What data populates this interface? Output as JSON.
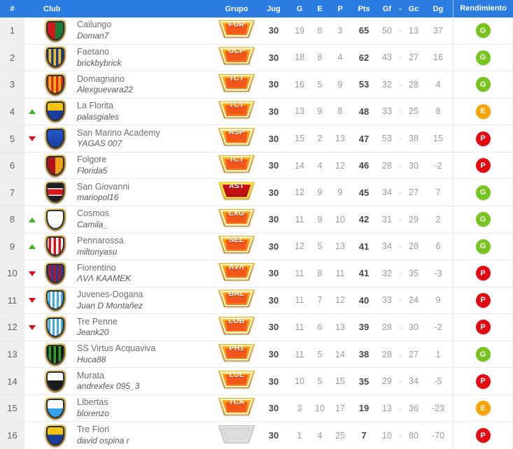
{
  "colors": {
    "header_bg": "#2b7de1",
    "header_text": "#ffffff",
    "pos_col_bg": "#efefef",
    "row_border": "#e9e9e9",
    "text_bold": "#474747",
    "text_muted": "#9c9c9c",
    "up_arrow": "#3fb423",
    "down_arrow": "#e30613",
    "rend_green": "#76c41d",
    "rend_amber": "#f8a300",
    "rend_red": "#e30b13",
    "badge_orange": "#f36d16",
    "badge_red": "#c31111",
    "badge_gray": "#d6d6d6"
  },
  "table": {
    "headers": {
      "pos": "#",
      "club": "Club",
      "grupo": "Grupo",
      "jug": "Jug",
      "g": "G",
      "e": "E",
      "p": "P",
      "pts": "Pts",
      "gf": "Gf",
      "dash": "-",
      "gc": "Gc",
      "dg": "Dg",
      "rendimiento": "Rendimiento"
    },
    "dash": "-",
    "rows": [
      {
        "pos": "1",
        "trend": "none",
        "club": "Cailungo",
        "user": "Doman7",
        "crest": "cailungo",
        "grupo": "FUR",
        "grupo_style": "orange",
        "jug": "30",
        "g": "19",
        "e": "8",
        "p": "3",
        "pts": "65",
        "gf": "50",
        "gc": "13",
        "dg": "37",
        "rend": "G"
      },
      {
        "pos": "2",
        "trend": "none",
        "club": "Faetano",
        "user": "brickbybrick",
        "crest": "faetano",
        "grupo": "UCP",
        "grupo_style": "orange",
        "jug": "30",
        "g": "18",
        "e": "8",
        "p": "4",
        "pts": "62",
        "gf": "43",
        "gc": "27",
        "dg": "16",
        "rend": "G"
      },
      {
        "pos": "3",
        "trend": "none",
        "club": "Domagnano",
        "user": "Alexguevara22",
        "crest": "domagnano",
        "grupo": "TCT",
        "grupo_style": "orange",
        "jug": "30",
        "g": "16",
        "e": "5",
        "p": "9",
        "pts": "53",
        "gf": "32",
        "gc": "28",
        "dg": "4",
        "rend": "G"
      },
      {
        "pos": "4",
        "trend": "up",
        "club": "La Florita",
        "user": "palasgiales",
        "crest": "laflorita",
        "grupo": "TCT",
        "grupo_style": "orange",
        "jug": "30",
        "g": "13",
        "e": "9",
        "p": "8",
        "pts": "48",
        "gf": "33",
        "gc": "25",
        "dg": "8",
        "rend": "E"
      },
      {
        "pos": "5",
        "trend": "down",
        "club": "San Marino Academy",
        "user": "YAGAS 007",
        "crest": "smacademy",
        "grupo": "ASP",
        "grupo_style": "orange",
        "jug": "30",
        "g": "15",
        "e": "2",
        "p": "13",
        "pts": "47",
        "gf": "53",
        "gc": "38",
        "dg": "15",
        "rend": "P"
      },
      {
        "pos": "6",
        "trend": "none",
        "club": "Folgore",
        "user": "Florida5",
        "crest": "folgore",
        "grupo": "TCT",
        "grupo_style": "orange",
        "jug": "30",
        "g": "14",
        "e": "4",
        "p": "12",
        "pts": "46",
        "gf": "28",
        "gc": "30",
        "dg": "-2",
        "rend": "P"
      },
      {
        "pos": "7",
        "trend": "none",
        "club": "San Giovanni",
        "user": "mariopol16",
        "crest": "sangiovanni",
        "grupo": "AST",
        "grupo_style": "red",
        "jug": "30",
        "g": "12",
        "e": "9",
        "p": "9",
        "pts": "45",
        "gf": "34",
        "gc": "27",
        "dg": "7",
        "rend": "G"
      },
      {
        "pos": "8",
        "trend": "up",
        "club": "Cosmos",
        "user": "Camila_",
        "crest": "cosmos",
        "grupo": "LXG",
        "grupo_style": "orange",
        "jug": "30",
        "g": "11",
        "e": "9",
        "p": "10",
        "pts": "42",
        "gf": "31",
        "gc": "29",
        "dg": "2",
        "rend": "G"
      },
      {
        "pos": "9",
        "trend": "up",
        "club": "Pennarossa",
        "user": "miltonyasu",
        "crest": "pennarossa",
        "grupo": "SEL",
        "grupo_style": "orange",
        "jug": "30",
        "g": "12",
        "e": "5",
        "p": "13",
        "pts": "41",
        "gf": "34",
        "gc": "28",
        "dg": "6",
        "rend": "G"
      },
      {
        "pos": "10",
        "trend": "down",
        "club": "Fiorentino",
        "user": "ΛVΛ KAAMEK",
        "crest": "fiorentino",
        "grupo": "ΛVΛ",
        "grupo_style": "orange",
        "jug": "30",
        "g": "11",
        "e": "8",
        "p": "11",
        "pts": "41",
        "gf": "32",
        "gc": "35",
        "dg": "-3",
        "rend": "P"
      },
      {
        "pos": "11",
        "trend": "down",
        "club": "Juvenes-Dogana",
        "user": "Juan D Montañez",
        "crest": "juvenes",
        "grupo": "BAL",
        "grupo_style": "orange",
        "jug": "30",
        "g": "11",
        "e": "7",
        "p": "12",
        "pts": "40",
        "gf": "33",
        "gc": "24",
        "dg": "9",
        "rend": "P"
      },
      {
        "pos": "12",
        "trend": "down",
        "club": "Tre Penne",
        "user": "Jeank20",
        "crest": "trepenne",
        "grupo": "LOB",
        "grupo_style": "orange",
        "jug": "30",
        "g": "11",
        "e": "6",
        "p": "13",
        "pts": "39",
        "gf": "28",
        "gc": "30",
        "dg": "-2",
        "rend": "P"
      },
      {
        "pos": "13",
        "trend": "none",
        "club": "SS Virtus Acquaviva",
        "user": "Huca88",
        "crest": "virtus",
        "grupo": "PH1",
        "grupo_style": "orange",
        "jug": "30",
        "g": "11",
        "e": "5",
        "p": "14",
        "pts": "38",
        "gf": "28",
        "gc": "27",
        "dg": "1",
        "rend": "G"
      },
      {
        "pos": "14",
        "trend": "none",
        "club": "Murata",
        "user": "andrexfex 095_3",
        "crest": "murata",
        "grupo": "LUL",
        "grupo_style": "orange",
        "jug": "30",
        "g": "10",
        "e": "5",
        "p": "15",
        "pts": "35",
        "gf": "29",
        "gc": "34",
        "dg": "-5",
        "rend": "P"
      },
      {
        "pos": "15",
        "trend": "none",
        "club": "Libertas",
        "user": "blorenzo",
        "crest": "libertas",
        "grupo": "TCA",
        "grupo_style": "orange",
        "jug": "30",
        "g": "3",
        "e": "10",
        "p": "17",
        "pts": "19",
        "gf": "13",
        "gc": "36",
        "dg": "-23",
        "rend": "E"
      },
      {
        "pos": "16",
        "trend": "none",
        "club": "Tre Fiori",
        "user": "david ospina r",
        "crest": "trefiori",
        "grupo": "",
        "grupo_style": "gray",
        "jug": "30",
        "g": "1",
        "e": "4",
        "p": "25",
        "pts": "7",
        "gf": "10",
        "gc": "80",
        "dg": "-70",
        "rend": "P"
      }
    ]
  }
}
